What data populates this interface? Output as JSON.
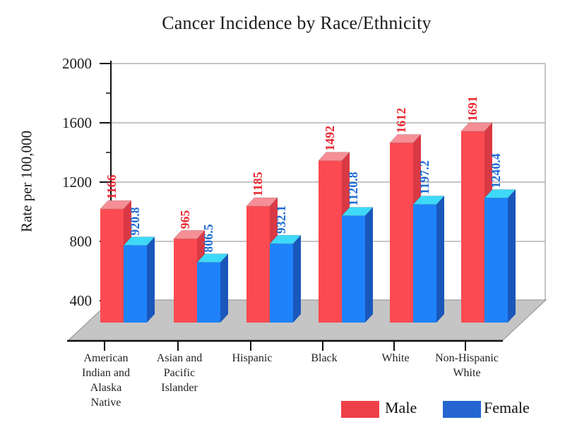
{
  "chart_data": {
    "type": "bar",
    "style": "3d",
    "title": "Cancer Incidence by Race/Ethnicity",
    "xlabel": "",
    "ylabel": "Rate per 100,000",
    "categories": [
      "American Indian and Alaska Native",
      "Asian and Pacific Islander",
      "Hispanic",
      "Black",
      "White",
      "Non-Hispanic White"
    ],
    "category_label_lines": [
      [
        "American",
        "Indian and",
        "Alaska",
        "Native"
      ],
      [
        "Asian and",
        "Pacific",
        "Islander"
      ],
      [
        "Hispanic"
      ],
      [
        "Black"
      ],
      [
        "White"
      ],
      [
        "Non-Hispanic",
        "White"
      ]
    ],
    "series": [
      {
        "name": "Male",
        "values": [
          1166,
          965,
          1185,
          1492,
          1612,
          1691
        ],
        "front_color": "#fb4a51",
        "top_color": "#f68e96",
        "side_color": "#d93944",
        "label_color": "#e9242d"
      },
      {
        "name": "Female",
        "values": [
          920.8,
          806.5,
          932.1,
          1120.8,
          1197.2,
          1240.4
        ],
        "front_color": "#1e82fa",
        "top_color": "#3ed9f8",
        "side_color": "#1a57bb",
        "label_color": "#1b6ad3"
      }
    ],
    "ylim": [
      400,
      2000
    ],
    "yticks": [
      400,
      800,
      1200,
      1600,
      2000
    ],
    "yticks_minor": [
      600,
      1000,
      1400,
      1800
    ],
    "grid": true,
    "legend_position": "bottom-right"
  },
  "legend": {
    "male_label": "Male",
    "female_label": "Female",
    "male_color": "#ee4048",
    "female_color": "#2465d0"
  },
  "colors": {
    "background": "#ffffff",
    "floor": "#c5c5c5",
    "floor_edge": "#8e8e8e",
    "gridline": "#b3b3b3",
    "axis": "#111111"
  }
}
